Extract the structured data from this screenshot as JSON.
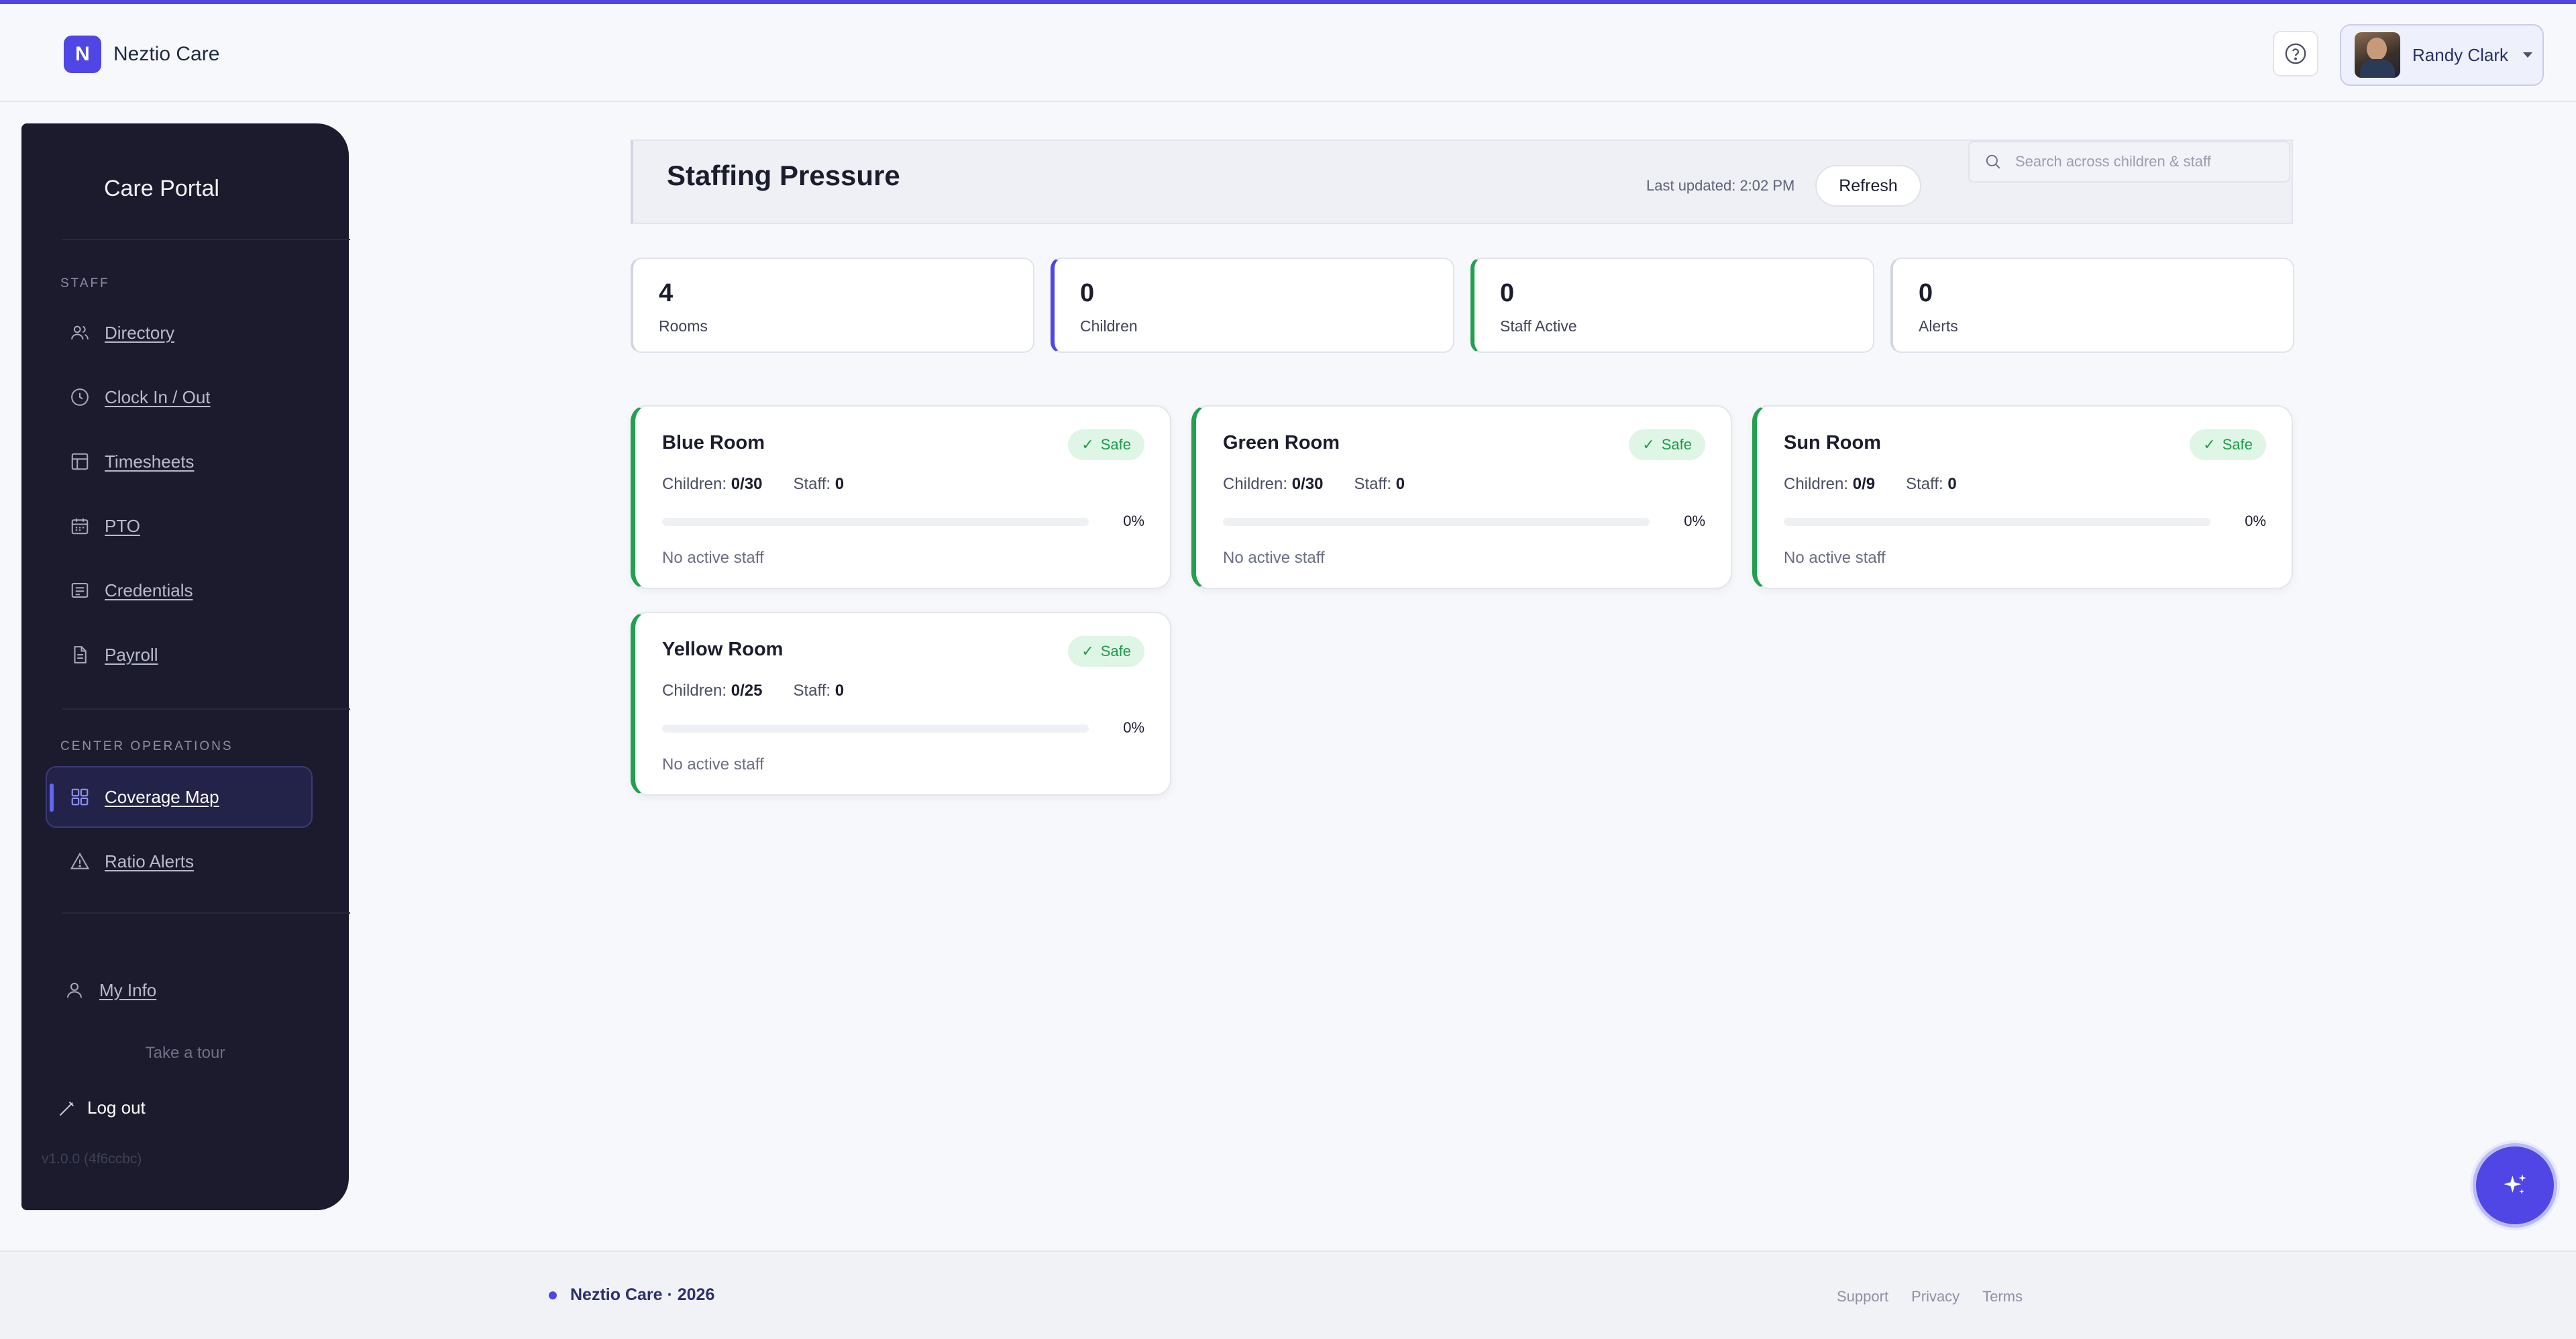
{
  "app": {
    "brand_initial": "N",
    "brand_name": "Neztio Care",
    "accent_color": "#4f46e5",
    "safe_color": "#22a04f"
  },
  "header": {
    "help_icon": "help-circle-icon",
    "user_name": "Randy Clark"
  },
  "sidebar": {
    "title": "Care Portal",
    "staff_section_label": "STAFF",
    "staff_items": [
      {
        "label": "Directory",
        "icon": "users-icon"
      },
      {
        "label": "Clock In / Out",
        "icon": "clock-icon"
      },
      {
        "label": "Timesheets",
        "icon": "table-icon"
      },
      {
        "label": "PTO",
        "icon": "calendar-icon"
      },
      {
        "label": "Credentials",
        "icon": "id-card-icon"
      },
      {
        "label": "Payroll",
        "icon": "document-icon"
      }
    ],
    "ops_section_label": "CENTER OPERATIONS",
    "ops_items": [
      {
        "label": "Coverage Map",
        "icon": "grid-icon",
        "active": true
      },
      {
        "label": "Ratio Alerts",
        "icon": "warning-icon"
      }
    ],
    "my_info_label": "My Info",
    "tour_label": "Take a tour",
    "logout_label": "Log out",
    "version": "v1.0.0 (4f6ccbc)"
  },
  "page": {
    "title": "Staffing Pressure",
    "last_updated": "Last updated: 2:02 PM",
    "refresh_label": "Refresh",
    "search_placeholder": "Search across children & staff"
  },
  "stats": [
    {
      "value": "4",
      "label": "Rooms",
      "accent": "#d3d5e3"
    },
    {
      "value": "0",
      "label": "Children",
      "accent": "#4f46e5"
    },
    {
      "value": "0",
      "label": "Staff Active",
      "accent": "#22a04f"
    },
    {
      "value": "0",
      "label": "Alerts",
      "accent": "#d3d5e3"
    }
  ],
  "rooms": [
    {
      "name": "Blue Room",
      "status": "Safe",
      "children_label": "Children:",
      "children": "0/30",
      "staff_label": "Staff:",
      "staff": "0",
      "pct": "0%",
      "fill": 0,
      "staff_note": "No active staff"
    },
    {
      "name": "Green Room",
      "status": "Safe",
      "children_label": "Children:",
      "children": "0/30",
      "staff_label": "Staff:",
      "staff": "0",
      "pct": "0%",
      "fill": 0,
      "staff_note": "No active staff"
    },
    {
      "name": "Sun Room",
      "status": "Safe",
      "children_label": "Children:",
      "children": "0/9",
      "staff_label": "Staff:",
      "staff": "0",
      "pct": "0%",
      "fill": 0,
      "staff_note": "No active staff"
    },
    {
      "name": "Yellow Room",
      "status": "Safe",
      "children_label": "Children:",
      "children": "0/25",
      "staff_label": "Staff:",
      "staff": "0",
      "pct": "0%",
      "fill": 0,
      "staff_note": "No active staff"
    }
  ],
  "footer": {
    "brand": "Neztio Care · 2026",
    "links": [
      "Support",
      "Privacy",
      "Terms"
    ]
  },
  "fab": {
    "icon": "sparkle-icon"
  }
}
